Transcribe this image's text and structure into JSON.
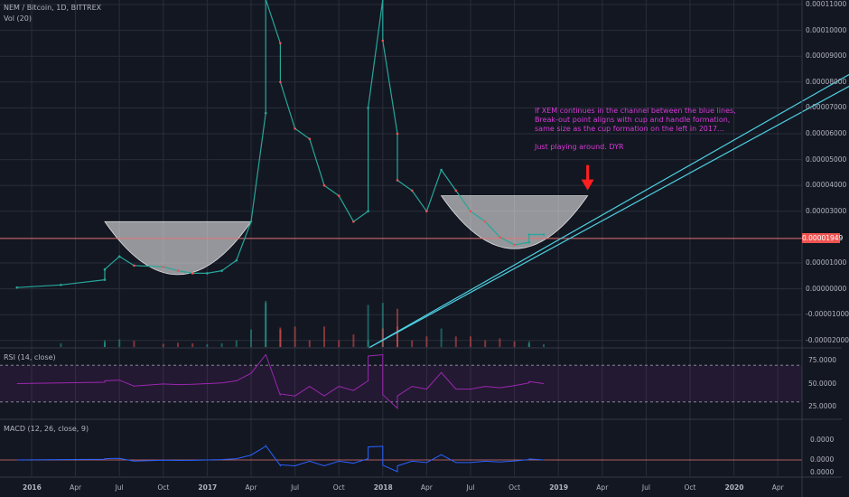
{
  "header": {
    "symbol": "NEM / Bitcoin, 1D, BITTREX",
    "volume_study": "Vol (20)"
  },
  "annotation": {
    "lines": [
      "If XEM continues in the channel between the blue lines,",
      "Break-out point aligns with cup and handle formation,",
      "same size as the cup formation on the left in 2017...",
      "",
      "Just playing around. DYR"
    ]
  },
  "price_axis": {
    "ticks": [
      "0.00011000",
      "0.00010000",
      "0.00009000",
      "0.00008000",
      "0.00007000",
      "0.00006000",
      "0.00005000",
      "0.00004000",
      "0.00003000",
      "0.00001000",
      "0.00000000",
      "-0.00001000",
      "-0.00002000"
    ],
    "current_price": "0.00001949"
  },
  "rsi_panel": {
    "title": "RSI (14, close)",
    "ticks": [
      "75.0000",
      "50.0000",
      "25.0000"
    ],
    "upper_band": 70,
    "lower_band": 30
  },
  "macd_panel": {
    "title": "MACD (12, 26, close, 9)",
    "ticks": [
      "0.0000",
      "0.0000",
      "0.0000"
    ]
  },
  "time_axis": {
    "labels": [
      "2016",
      "Apr",
      "Jul",
      "Oct",
      "2017",
      "Apr",
      "Jul",
      "Oct",
      "2018",
      "Apr",
      "Jul",
      "Oct",
      "2019",
      "Apr",
      "Jul",
      "Oct",
      "2020",
      "Apr"
    ]
  },
  "colors": {
    "background": "#131722",
    "grid": "#2a2e39",
    "candle_up": "#26a69a",
    "candle_down": "#ef5350",
    "channel_line": "#4dd0e1",
    "cup_fill": "#ffffff",
    "price_line": "#e57373",
    "rsi_line": "#9c27b0",
    "annotation": "#d63ad6",
    "arrow": "#ff1f1f"
  },
  "chart_data": {
    "type": "line",
    "title": "NEM / Bitcoin, 1D, BITTREX",
    "xlabel": "",
    "ylabel": "",
    "ylim": [
      -2.5e-05,
      0.000112
    ],
    "x": [
      "2015-12",
      "2016-03",
      "2016-06",
      "2016-06",
      "2016-07",
      "2016-08",
      "2016-10",
      "2016-11",
      "2016-12",
      "2017-01",
      "2017-02",
      "2017-03",
      "2017-04",
      "2017-05",
      "2017-05",
      "2017-06",
      "2017-06",
      "2017-07",
      "2017-08",
      "2017-09",
      "2017-10",
      "2017-11",
      "2017-12",
      "2017-12",
      "2018-01",
      "2018-01",
      "2018-02",
      "2018-02",
      "2018-03",
      "2018-04",
      "2018-05",
      "2018-06",
      "2018-07",
      "2018-08",
      "2018-09",
      "2018-10",
      "2018-11",
      "2018-11",
      "2018-12"
    ],
    "series": [
      {
        "values": [
          5e-07,
          1.5e-06,
          3.5e-06,
          7.5e-06,
          1.25e-05,
          9e-06,
          8.5e-06,
          7e-06,
          6e-06,
          6e-06,
          7e-06,
          1.1e-05,
          2.6e-05,
          6.8e-05,
          0.000112,
          9.5e-05,
          8e-05,
          6.2e-05,
          5.8e-05,
          4e-05,
          3.6e-05,
          2.6e-05,
          3e-05,
          7e-05,
          0.000112,
          9.6e-05,
          6e-05,
          4.2e-05,
          3.8e-05,
          3e-05,
          4.6e-05,
          3.8e-05,
          3e-05,
          2.6e-05,
          2e-05,
          1.7e-05,
          1.8e-05,
          2.1e-05,
          2.1e-05
        ]
      }
    ],
    "cup_patterns": [
      {
        "start": "2016-06",
        "end": "2017-04",
        "rim": 2.6e-05,
        "bottom": 5.5e-06
      },
      {
        "start": "2018-05",
        "end": "2019-03",
        "rim": 3.6e-05,
        "bottom": 1.55e-05
      }
    ],
    "horizontal_level": 1.949e-05,
    "channel_lines": [
      {
        "from": [
          "2017-12",
          -2.3e-05
        ],
        "to": [
          "2020-12",
          9.3e-05
        ]
      },
      {
        "from": [
          "2017-12",
          -2.3e-05
        ],
        "to": [
          "2020-12",
          8.8e-05
        ]
      }
    ],
    "grid": true
  }
}
